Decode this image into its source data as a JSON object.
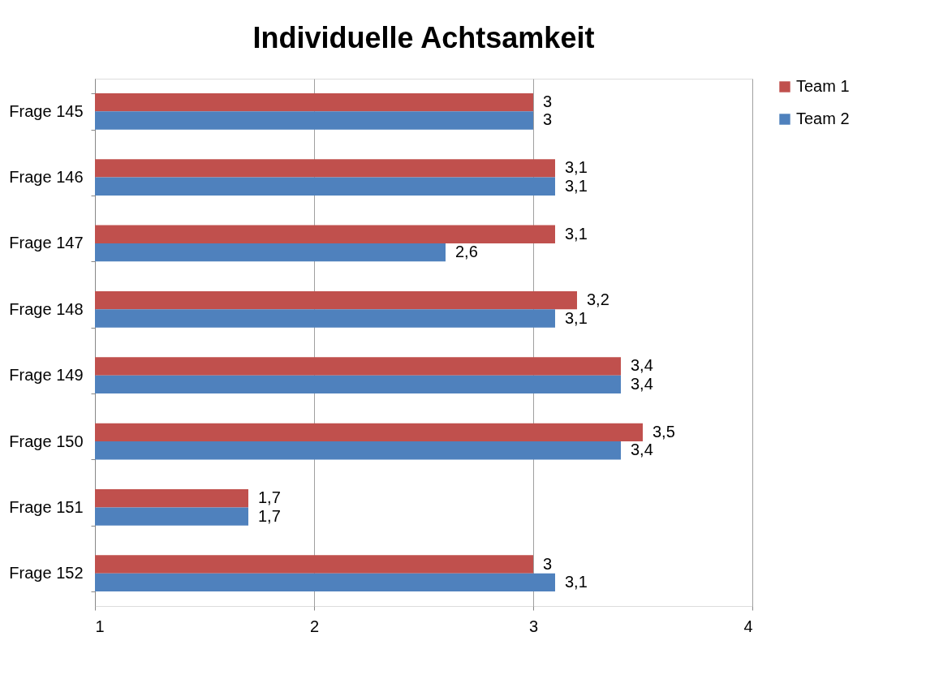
{
  "chart_data": {
    "type": "bar",
    "orientation": "horizontal",
    "title": "Individuelle Achtsamkeit",
    "categories": [
      "Frage 145",
      "Frage 146",
      "Frage 147",
      "Frage 148",
      "Frage 149",
      "Frage 150",
      "Frage 151",
      "Frage 152"
    ],
    "series": [
      {
        "name": "Team 1",
        "color": "#c0504d",
        "values": [
          3,
          3.1,
          3.1,
          3.2,
          3.4,
          3.5,
          1.7,
          3
        ],
        "value_labels": [
          "3",
          "3,1",
          "3,1",
          "3,2",
          "3,4",
          "3,5",
          "1,7",
          "3"
        ]
      },
      {
        "name": "Team 2",
        "color": "#4f81bd",
        "values": [
          3,
          3.1,
          2.6,
          3.1,
          3.4,
          3.4,
          1.7,
          3.1
        ],
        "value_labels": [
          "3",
          "3,1",
          "2,6",
          "3,1",
          "3,4",
          "3,4",
          "1,7",
          "3,1"
        ]
      }
    ],
    "xlim": [
      1,
      4
    ],
    "xticks": [
      1,
      2,
      3,
      4
    ],
    "grid": "x",
    "legend": "right"
  }
}
